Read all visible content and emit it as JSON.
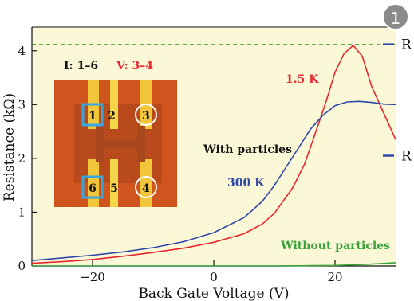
{
  "badge": {
    "number": "1"
  },
  "chart_data": {
    "type": "line",
    "xlabel": "Back Gate Voltage (V)",
    "ylabel": "Resistance (kΩ)",
    "xlim": [
      -30,
      30
    ],
    "ylim": [
      0,
      4.5
    ],
    "x_ticks": [
      -20,
      0,
      20
    ],
    "y_ticks": [
      0,
      1,
      2,
      3,
      4
    ],
    "reference_line": {
      "y": 4.12,
      "style": "dashed",
      "color": "#5bb03a"
    },
    "right_markers": [
      {
        "y": 4.12,
        "label": "R"
      },
      {
        "y": 2.05,
        "label": "R"
      }
    ],
    "inset": {
      "current_label": "I: 1–6",
      "voltage_label": "V: 3–4",
      "pads": [
        "1",
        "2",
        "3",
        "6",
        "5",
        "4"
      ]
    },
    "annotations": [
      {
        "text": "1.5 K",
        "color": "#e8262c"
      },
      {
        "text": "With particles",
        "color": "#111111"
      },
      {
        "text": "300 K",
        "color": "#2e48a8"
      },
      {
        "text": "Without particles",
        "color": "#3aa23a"
      }
    ],
    "series": [
      {
        "label": "1.5 K",
        "color": "#e8262c",
        "x": [
          -30,
          -25,
          -20,
          -15,
          -10,
          -5,
          0,
          5,
          8,
          10,
          13,
          15,
          17,
          18.5,
          20,
          21.5,
          23,
          24.5,
          26,
          28,
          30
        ],
        "y": [
          0.05,
          0.08,
          0.12,
          0.18,
          0.25,
          0.33,
          0.44,
          0.6,
          0.78,
          0.98,
          1.45,
          1.9,
          2.55,
          3.05,
          3.6,
          3.95,
          4.1,
          3.9,
          3.35,
          2.85,
          2.35
        ]
      },
      {
        "label": "300 K",
        "color": "#2e48a8",
        "x": [
          -30,
          -25,
          -20,
          -15,
          -10,
          -5,
          0,
          5,
          8,
          10,
          12,
          14,
          16,
          18,
          20,
          22,
          24,
          26,
          28,
          30
        ],
        "y": [
          0.1,
          0.15,
          0.2,
          0.26,
          0.34,
          0.45,
          0.62,
          0.9,
          1.2,
          1.5,
          1.85,
          2.2,
          2.55,
          2.8,
          2.98,
          3.05,
          3.06,
          3.04,
          3.01,
          3.0
        ]
      },
      {
        "label": "Without particles",
        "color": "#3aa23a",
        "x": [
          -30,
          -10,
          10,
          20,
          25,
          30
        ],
        "y": [
          0.0,
          0.0,
          0.0,
          0.01,
          0.03,
          0.06
        ]
      }
    ]
  }
}
